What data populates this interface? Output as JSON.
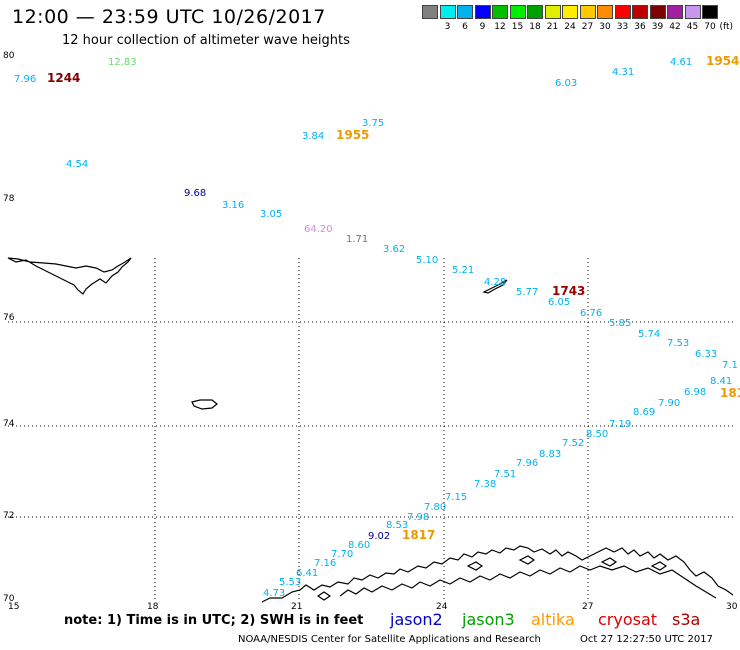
{
  "header": {
    "title": "12:00 — 23:59 UTC 10/26/2017",
    "subtitle": "12 hour collection of altimeter wave heights"
  },
  "color_scale": {
    "unit": "(ft)",
    "bins": [
      {
        "label": "",
        "color": "#808080"
      },
      {
        "label": "3",
        "color": "#00eeee"
      },
      {
        "label": "6",
        "color": "#00b2ee"
      },
      {
        "label": "9",
        "color": "#0000ff"
      },
      {
        "label": "12",
        "color": "#00c000"
      },
      {
        "label": "15",
        "color": "#00ee00"
      },
      {
        "label": "18",
        "color": "#00a000"
      },
      {
        "label": "21",
        "color": "#e0ee00"
      },
      {
        "label": "24",
        "color": "#ffee00"
      },
      {
        "label": "27",
        "color": "#ffc800"
      },
      {
        "label": "30",
        "color": "#ff8c00"
      },
      {
        "label": "33",
        "color": "#ff0000"
      },
      {
        "label": "36",
        "color": "#c00000"
      },
      {
        "label": "39",
        "color": "#800000"
      },
      {
        "label": "42",
        "color": "#a020a0"
      },
      {
        "label": "45",
        "color": "#c896ee"
      },
      {
        "label": "70",
        "color": "#000000"
      }
    ]
  },
  "axes": {
    "lon_labels": [
      "15",
      "18",
      "21",
      "24",
      "27",
      "30"
    ],
    "lat_labels": [
      "80",
      "78",
      "76",
      "74",
      "72",
      "70"
    ]
  },
  "observations": [
    {
      "text": "7.96",
      "color": "#00b2ee"
    },
    {
      "text": "1244",
      "color": "#800000",
      "time": true
    },
    {
      "text": "12.83",
      "color": "#66dd66"
    },
    {
      "text": "6.03",
      "color": "#00b2ee"
    },
    {
      "text": "4.31",
      "color": "#00b2ee"
    },
    {
      "text": "4.61",
      "color": "#00b2ee"
    },
    {
      "text": "1954",
      "color": "#ee9900",
      "time": true
    },
    {
      "text": "3.75",
      "color": "#00b2ee"
    },
    {
      "text": "3.84",
      "color": "#00b2ee"
    },
    {
      "text": "1955",
      "color": "#ee9900",
      "time": true
    },
    {
      "text": "4.54",
      "color": "#00b2ee"
    },
    {
      "text": "9.68",
      "color": "#000099"
    },
    {
      "text": "3.16",
      "color": "#00b2ee"
    },
    {
      "text": "3.05",
      "color": "#00b2ee"
    },
    {
      "text": "64.20",
      "color": "#dd88dd"
    },
    {
      "text": "1.71",
      "color": "#777777"
    },
    {
      "text": "3.62",
      "color": "#00b2ee"
    },
    {
      "text": "5.10",
      "color": "#00b2ee"
    },
    {
      "text": "5.21",
      "color": "#00b2ee"
    },
    {
      "text": "4.28",
      "color": "#00b2ee"
    },
    {
      "text": "5.77",
      "color": "#00b2ee"
    },
    {
      "text": "1743",
      "color": "#990000",
      "time": true
    },
    {
      "text": "6.05",
      "color": "#00b2ee"
    },
    {
      "text": "6.76",
      "color": "#00b2ee"
    },
    {
      "text": "5.85",
      "color": "#00b2ee"
    },
    {
      "text": "5.74",
      "color": "#00b2ee"
    },
    {
      "text": "7.53",
      "color": "#00b2ee"
    },
    {
      "text": "6.33",
      "color": "#00b2ee"
    },
    {
      "text": "7.1",
      "color": "#00b2ee"
    },
    {
      "text": "8.41",
      "color": "#00b2ee"
    },
    {
      "text": "181",
      "color": "#ee9900",
      "time": true
    },
    {
      "text": "6.98",
      "color": "#00b2ee"
    },
    {
      "text": "7.90",
      "color": "#00b2ee"
    },
    {
      "text": "8.69",
      "color": "#00b2ee"
    },
    {
      "text": "7.19",
      "color": "#00b2ee"
    },
    {
      "text": "8.50",
      "color": "#00b2ee"
    },
    {
      "text": "7.52",
      "color": "#00b2ee"
    },
    {
      "text": "8.83",
      "color": "#00b2ee"
    },
    {
      "text": "7.96",
      "color": "#00b2ee"
    },
    {
      "text": "7.51",
      "color": "#00b2ee"
    },
    {
      "text": "7.38",
      "color": "#00b2ee"
    },
    {
      "text": "7.15",
      "color": "#00b2ee"
    },
    {
      "text": "7.80",
      "color": "#00b2ee"
    },
    {
      "text": "7.98",
      "color": "#00b2ee"
    },
    {
      "text": "8.53",
      "color": "#00b2ee"
    },
    {
      "text": "9.02",
      "color": "#000099"
    },
    {
      "text": "1817",
      "color": "#ee9900",
      "time": true
    },
    {
      "text": "8.60",
      "color": "#00b2ee"
    },
    {
      "text": "7.70",
      "color": "#00b2ee"
    },
    {
      "text": "7.16",
      "color": "#00b2ee"
    },
    {
      "text": "6.41",
      "color": "#00b2ee"
    },
    {
      "text": "5.53",
      "color": "#00b2ee"
    },
    {
      "text": "4.73",
      "color": "#00b2ee"
    }
  ],
  "footer": {
    "note": "note: 1) Time is in UTC; 2) SWH is in feet",
    "satellites": [
      {
        "name": "jason2",
        "color": "#0000cc"
      },
      {
        "name": "jason3",
        "color": "#00a000"
      },
      {
        "name": "altika",
        "color": "#ff9900"
      },
      {
        "name": "cryosat",
        "color": "#dd0000"
      },
      {
        "name": "s3a",
        "color": "#aa0000"
      }
    ],
    "credit": "NOAA/NESDIS Center for Satellite Applications and Research",
    "timestamp": "Oct 27 12:27:50 UTC 2017"
  }
}
